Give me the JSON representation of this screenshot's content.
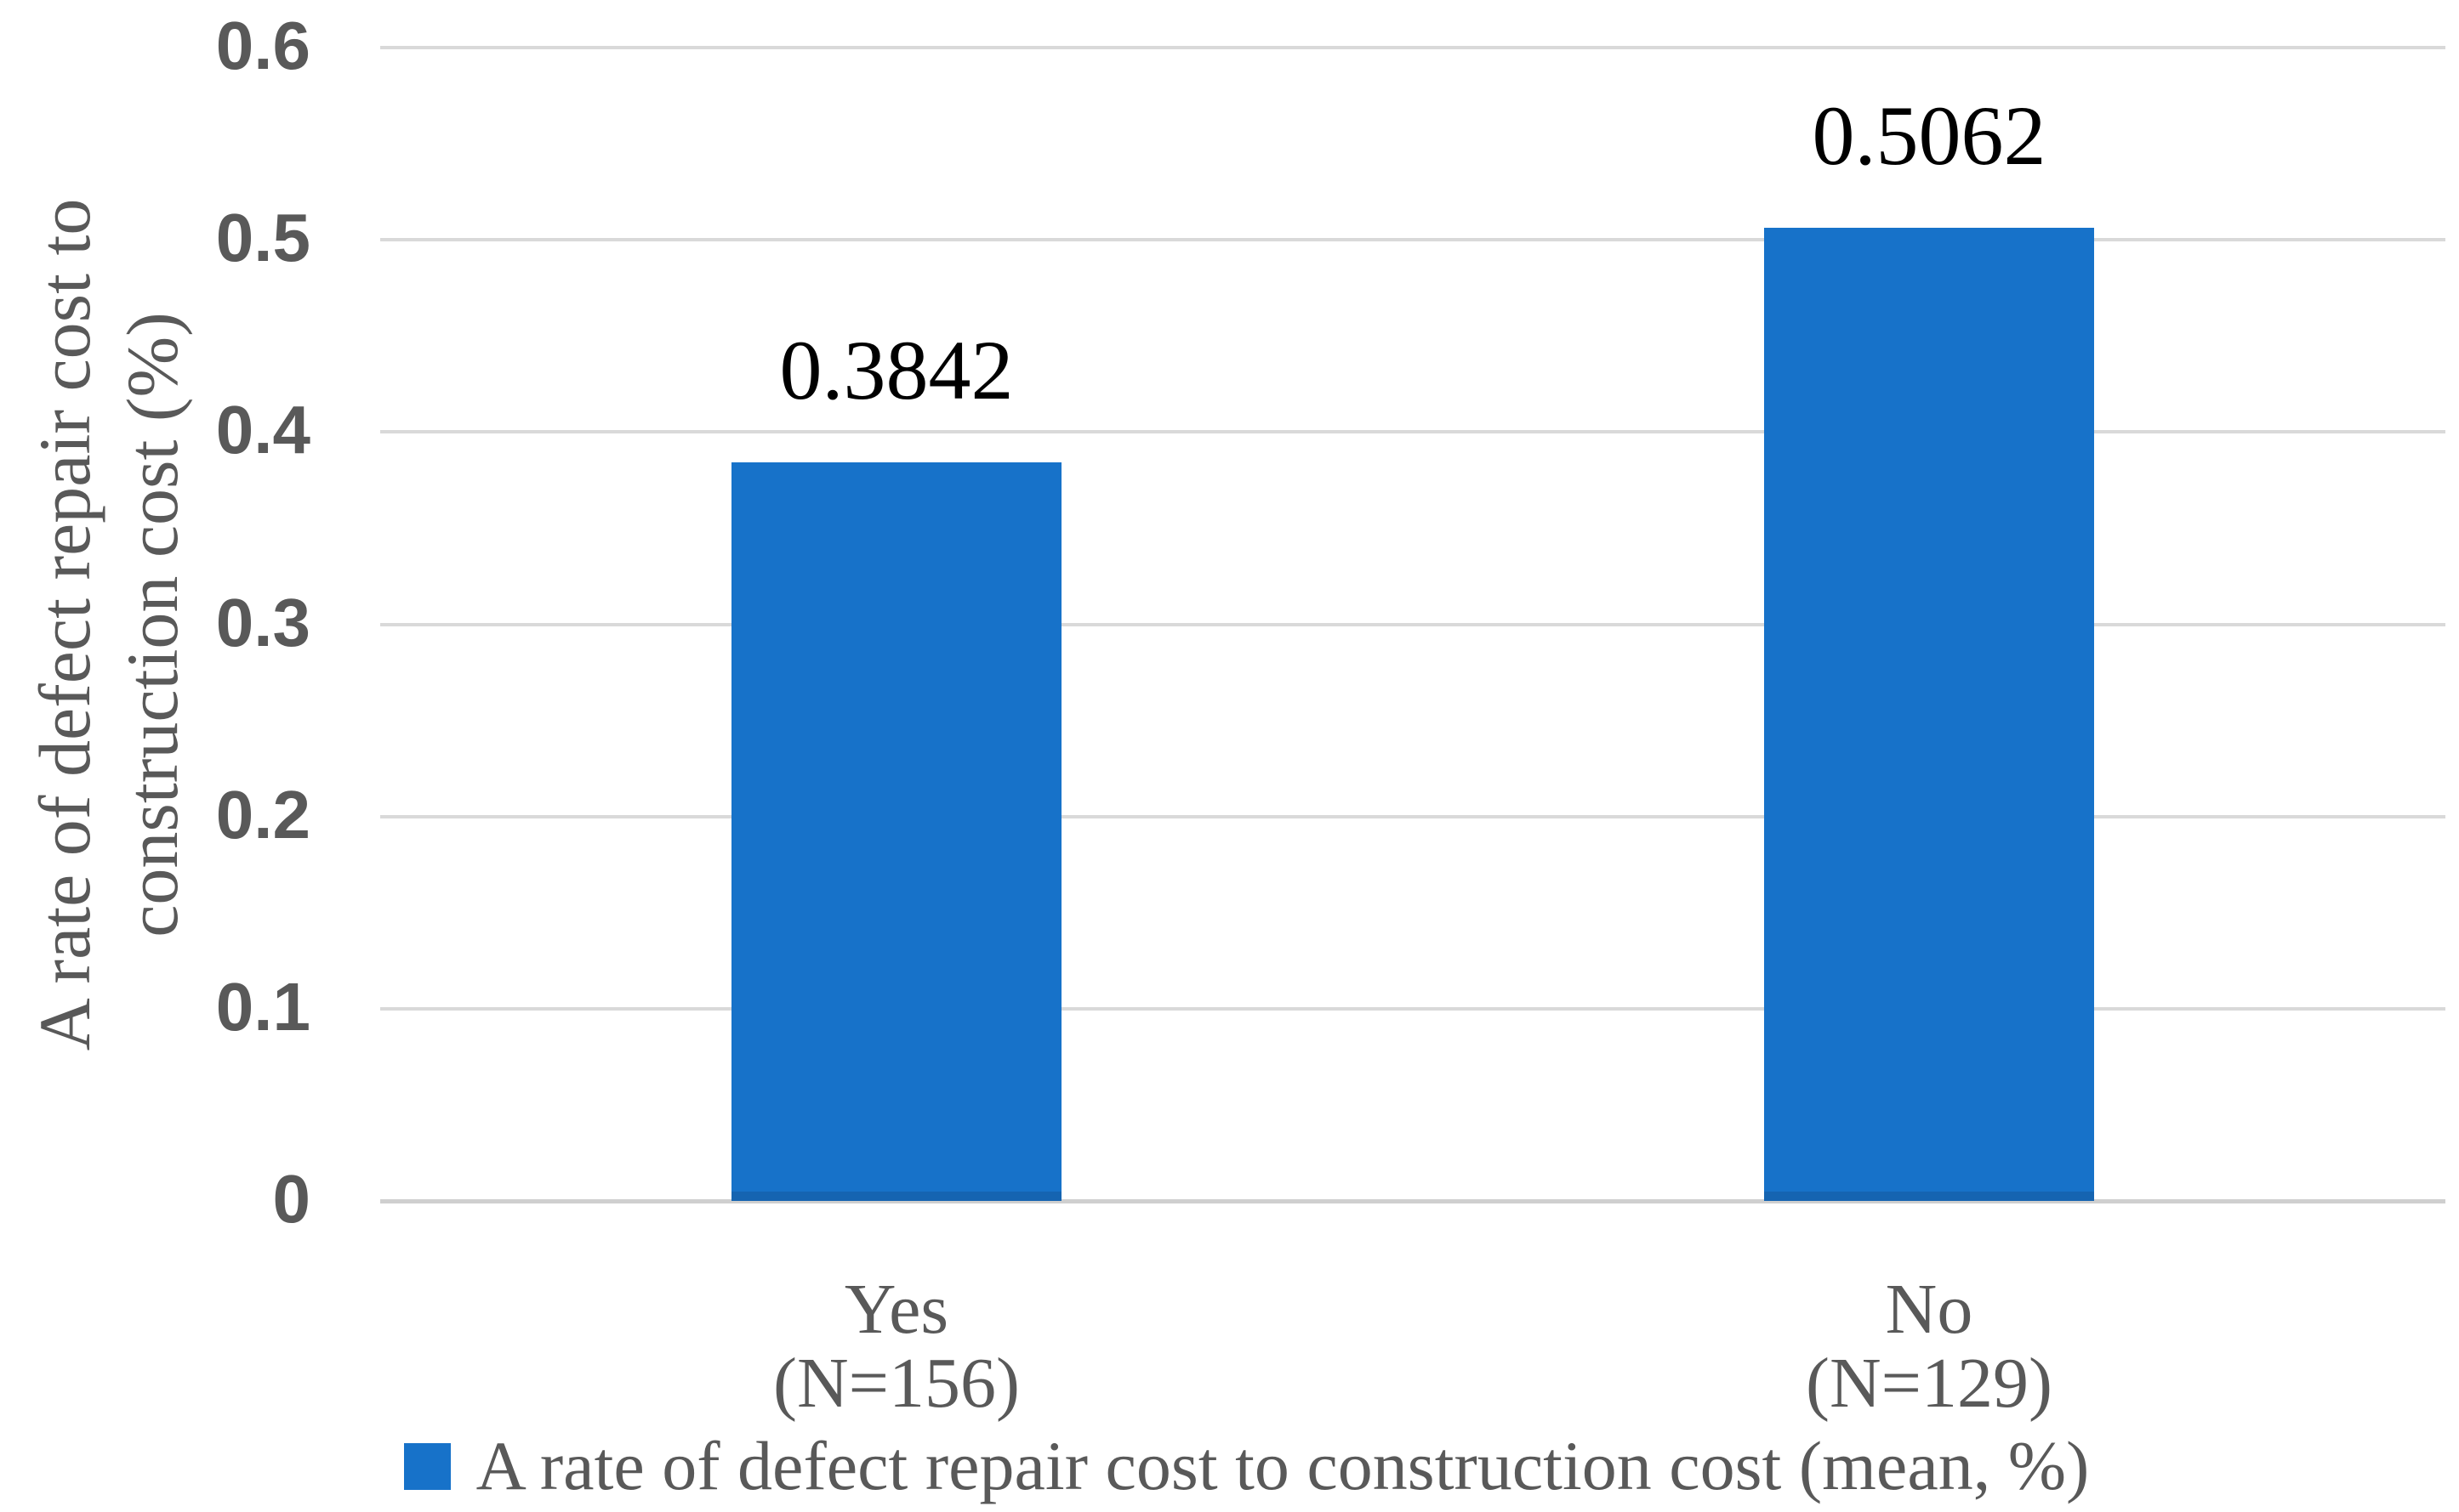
{
  "chart_data": {
    "type": "bar",
    "title": "",
    "categories": [
      {
        "label": "Yes",
        "sublabel": "(N=156)"
      },
      {
        "label": "No",
        "sublabel": "(N=129)"
      }
    ],
    "values": [
      0.3842,
      0.5062
    ],
    "data_labels": [
      "0.3842",
      "0.5062"
    ],
    "xlabel": "",
    "ylabel_line1": "A rate of defect repair cost to",
    "ylabel_line2": "construction cost (%)",
    "ylim": [
      0,
      0.6
    ],
    "y_ticks": [
      {
        "value": 0,
        "label": "0"
      },
      {
        "value": 0.1,
        "label": "0.1"
      },
      {
        "value": 0.2,
        "label": "0.2"
      },
      {
        "value": 0.3,
        "label": "0.3"
      },
      {
        "value": 0.4,
        "label": "0.4"
      },
      {
        "value": 0.5,
        "label": "0.5"
      },
      {
        "value": 0.6,
        "label": "0.6"
      }
    ],
    "grid": true,
    "legend_position": "bottom",
    "legend": {
      "label": "A rate of defect repair cost to construction cost (mean, %)"
    },
    "colors": {
      "bar": "#1772C9",
      "gridline": "#D9D9D9",
      "baseline": "#CFCFCF",
      "tick_text": "#595959",
      "axis_text": "#595959",
      "data_label_text": "#000000"
    }
  }
}
